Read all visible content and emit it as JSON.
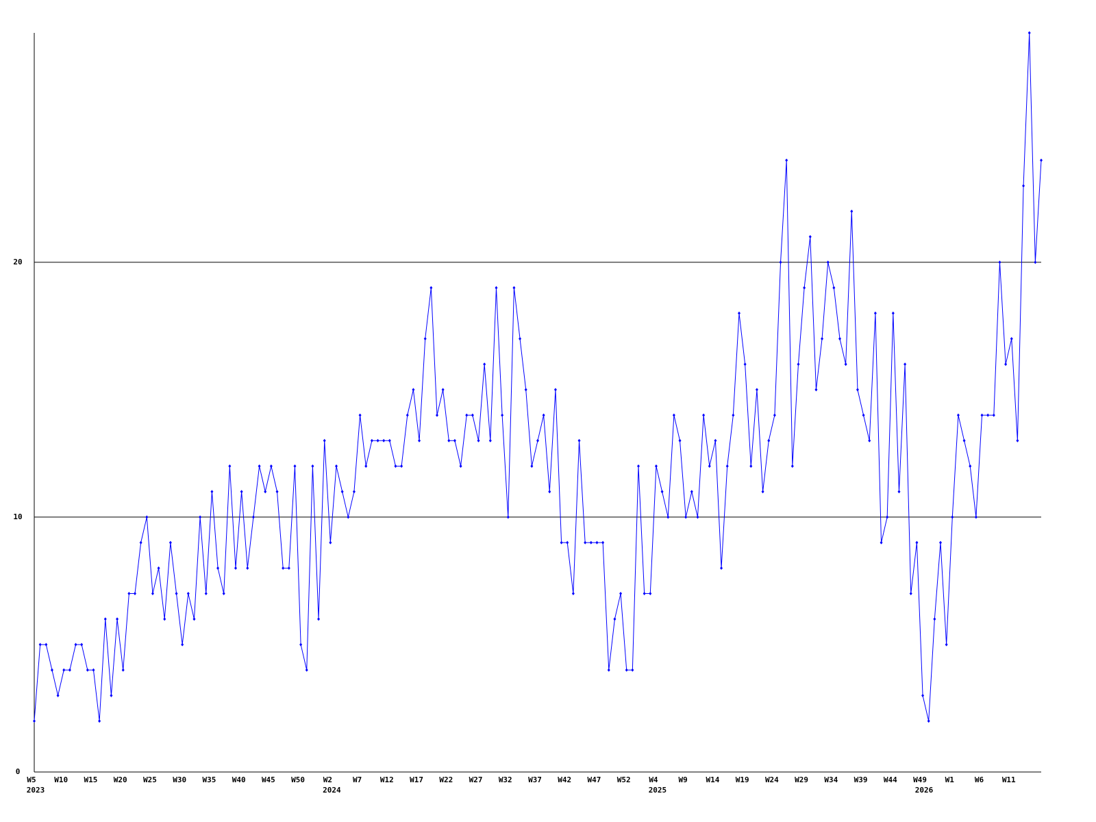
{
  "chart_data": {
    "type": "line",
    "categories": [
      "W5",
      null,
      null,
      null,
      null,
      "W10",
      null,
      null,
      null,
      null,
      "W15",
      null,
      null,
      null,
      null,
      "W20",
      null,
      null,
      null,
      null,
      "W25",
      null,
      null,
      null,
      null,
      "W30",
      null,
      null,
      null,
      null,
      "W35",
      null,
      null,
      null,
      null,
      "W40",
      null,
      null,
      null,
      null,
      "W45",
      null,
      null,
      null,
      null,
      "W50",
      null,
      null,
      null,
      null,
      "W2",
      null,
      null,
      null,
      null,
      "W7",
      null,
      null,
      null,
      null,
      "W12",
      null,
      null,
      null,
      null,
      "W17",
      null,
      null,
      null,
      null,
      "W22",
      null,
      null,
      null,
      null,
      "W27",
      null,
      null,
      null,
      null,
      "W32",
      null,
      null,
      null,
      null,
      "W37",
      null,
      null,
      null,
      null,
      "W42",
      null,
      null,
      null,
      null,
      "W47",
      null,
      null,
      null,
      null,
      "W52",
      null,
      null,
      null,
      null,
      "W4",
      null,
      null,
      null,
      null,
      "W9",
      null,
      null,
      null,
      null,
      "W14",
      null,
      null,
      null,
      null,
      "W19",
      null,
      null,
      null,
      null,
      "W24",
      null,
      null,
      null,
      null,
      "W29",
      null,
      null,
      null,
      null,
      "W34",
      null,
      null,
      null,
      null,
      "W39",
      null,
      null,
      null,
      null,
      "W44",
      null,
      null,
      null,
      null,
      "W49",
      null,
      null,
      null,
      null,
      "W1",
      null,
      null,
      null,
      null,
      "W6",
      null,
      null,
      null,
      null,
      "W11",
      null,
      null,
      null,
      null,
      null
    ],
    "category_years": [
      "2023",
      null,
      null,
      null,
      null,
      null,
      null,
      null,
      null,
      null,
      null,
      null,
      null,
      null,
      null,
      null,
      null,
      null,
      null,
      null,
      null,
      null,
      null,
      null,
      null,
      null,
      null,
      null,
      null,
      null,
      null,
      null,
      null,
      null,
      null,
      null,
      null,
      null,
      null,
      null,
      null,
      null,
      null,
      null,
      null,
      null,
      null,
      null,
      null,
      null,
      "2024",
      null,
      null,
      null,
      null,
      null,
      null,
      null,
      null,
      null,
      null,
      null,
      null,
      null,
      null,
      null,
      null,
      null,
      null,
      null,
      null,
      null,
      null,
      null,
      null,
      null,
      null,
      null,
      null,
      null,
      null,
      null,
      null,
      null,
      null,
      null,
      null,
      null,
      null,
      null,
      null,
      null,
      null,
      null,
      null,
      null,
      null,
      null,
      null,
      null,
      null,
      null,
      null,
      null,
      null,
      "2025",
      null,
      null,
      null,
      null,
      null,
      null,
      null,
      null,
      null,
      null,
      null,
      null,
      null,
      null,
      null,
      null,
      null,
      null,
      null,
      null,
      null,
      null,
      null,
      null,
      null,
      null,
      null,
      null,
      null,
      null,
      null,
      null,
      null,
      null,
      null,
      null,
      null,
      null,
      null,
      null,
      null,
      null,
      null,
      null,
      "2026",
      null,
      null,
      null,
      null,
      null,
      null,
      null,
      null,
      null,
      null,
      null,
      null,
      null,
      null,
      null
    ],
    "values": [
      2,
      5,
      5,
      4,
      3,
      4,
      4,
      5,
      5,
      4,
      4,
      2,
      6,
      3,
      6,
      4,
      7,
      7,
      9,
      10,
      7,
      8,
      6,
      9,
      7,
      5,
      7,
      6,
      10,
      7,
      11,
      8,
      7,
      12,
      8,
      11,
      8,
      10,
      12,
      11,
      12,
      11,
      8,
      8,
      12,
      5,
      4,
      12,
      6,
      13,
      9,
      12,
      11,
      10,
      11,
      14,
      12,
      13,
      13,
      13,
      13,
      12,
      12,
      14,
      15,
      13,
      17,
      19,
      14,
      15,
      13,
      13,
      12,
      14,
      14,
      13,
      16,
      13,
      19,
      14,
      10,
      19,
      17,
      15,
      12,
      13,
      14,
      11,
      15,
      9,
      9,
      7,
      13,
      9,
      9,
      9,
      9,
      4,
      6,
      7,
      4,
      4,
      12,
      7,
      7,
      12,
      11,
      10,
      14,
      13,
      10,
      11,
      10,
      14,
      12,
      13,
      8,
      12,
      14,
      18,
      16,
      12,
      15,
      11,
      13,
      14,
      20,
      24,
      12,
      16,
      19,
      21,
      15,
      17,
      20,
      19,
      17,
      16,
      22,
      15,
      14,
      13,
      18,
      9,
      10,
      18,
      11,
      16,
      7,
      9,
      3,
      2,
      6,
      9,
      5,
      10,
      14,
      13,
      12,
      10,
      14,
      14,
      14,
      20,
      16,
      17,
      13,
      23,
      29,
      20,
      24
    ],
    "color": "#0000ff",
    "ylim": [
      0,
      29
    ],
    "yticks": [
      0,
      10,
      20
    ],
    "grid": true
  }
}
